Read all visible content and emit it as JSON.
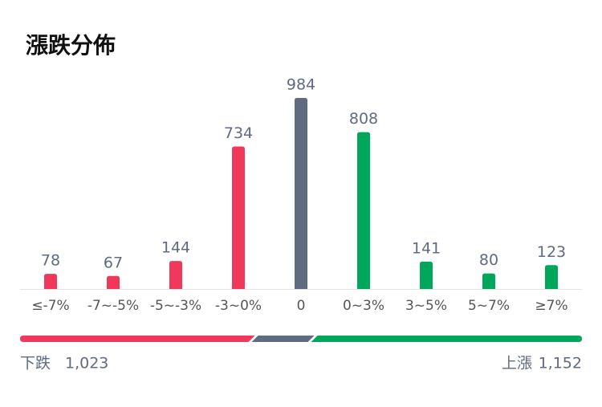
{
  "chart_data": {
    "type": "bar",
    "title": "漲跌分佈",
    "categories": [
      "≤-7%",
      "-7~-5%",
      "-5~-3%",
      "-3~0%",
      "0",
      "0~3%",
      "3~5%",
      "5~7%",
      "≥7%"
    ],
    "values": [
      78,
      67,
      144,
      734,
      984,
      808,
      141,
      80,
      123
    ],
    "colors": [
      "#f0395a",
      "#f0395a",
      "#f0395a",
      "#f0395a",
      "#5f6b80",
      "#00a65a",
      "#00a65a",
      "#00a65a",
      "#00a65a"
    ]
  },
  "summary": {
    "labels": [
      "下跌",
      "上漲"
    ],
    "values": [
      1023,
      1152
    ],
    "value_labels": [
      "1,023",
      "1,152"
    ],
    "colors": [
      "#f0395a",
      "#00a65a"
    ]
  }
}
